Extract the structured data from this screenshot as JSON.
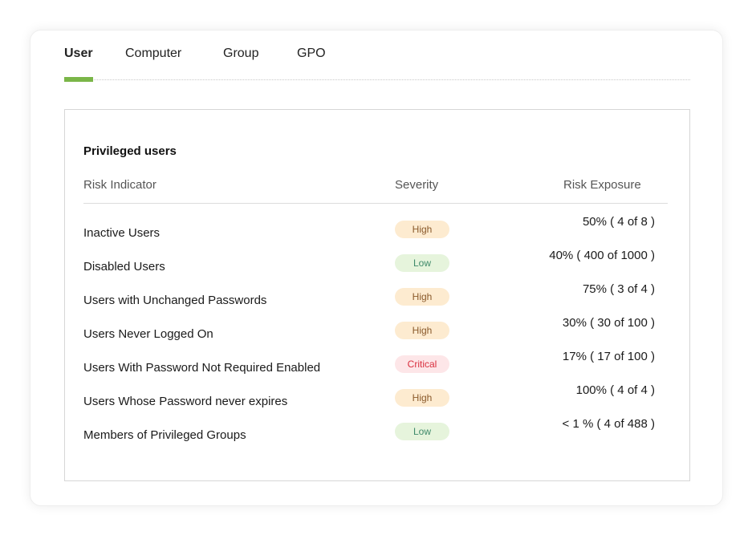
{
  "tabs": [
    {
      "label": "User",
      "active": true
    },
    {
      "label": "Computer"
    },
    {
      "label": "Group"
    },
    {
      "label": "GPO"
    }
  ],
  "accent": "#7ab648",
  "section": {
    "title": "Privileged users",
    "columns": {
      "indicator": "Risk Indicator",
      "severity": "Severity",
      "exposure": "Risk Exposure"
    },
    "severity_colors": {
      "High": {
        "bg": "#fdebd0",
        "fg": "#8a5a2b"
      },
      "Low": {
        "bg": "#e6f4dc",
        "fg": "#3f8a6a"
      },
      "Critical": {
        "bg": "#fde6e8",
        "fg": "#d9303f"
      }
    },
    "rows": [
      {
        "indicator": "Inactive Users",
        "severity": "High",
        "exposure": "50% ( 4 of 8 )"
      },
      {
        "indicator": "Disabled Users",
        "severity": "Low",
        "exposure": "40% ( 400 of 1000 )"
      },
      {
        "indicator": "Users with Unchanged Passwords",
        "severity": "High",
        "exposure": "75% ( 3 of 4 )"
      },
      {
        "indicator": "Users Never Logged On",
        "severity": "High",
        "exposure": "30% ( 30 of 100 )"
      },
      {
        "indicator": "Users With Password Not Required Enabled",
        "severity": "Critical",
        "exposure": "17% ( 17 of 100 )"
      },
      {
        "indicator": "Users Whose Password never expires",
        "severity": "High",
        "exposure": "100% ( 4 of 4 )"
      },
      {
        "indicator": "Members of Privileged Groups",
        "severity": "Low",
        "exposure": "< 1 % ( 4 of 488 )"
      }
    ]
  }
}
